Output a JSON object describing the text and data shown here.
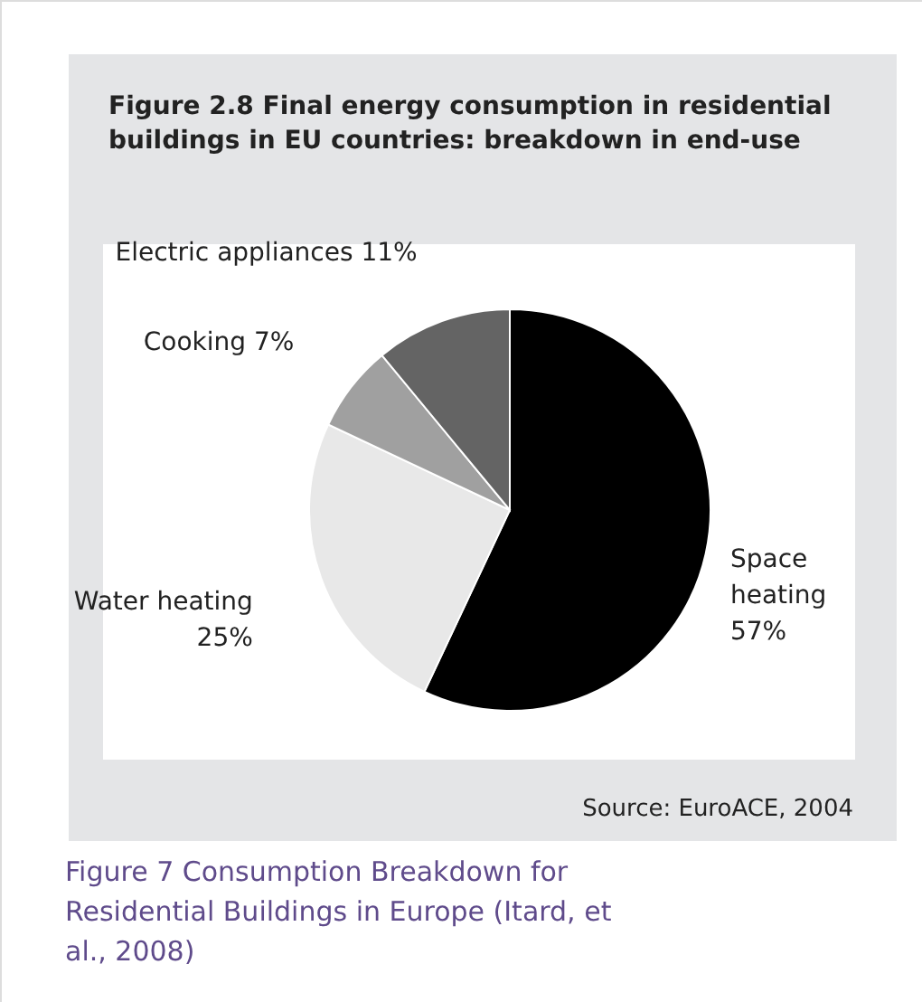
{
  "chart_data": {
    "type": "pie",
    "title": "Figure 2.8  Final energy consumption in residential buildings in EU countries: breakdown in end-use",
    "categories": [
      "Space heating",
      "Water heating",
      "Cooking",
      "Electric appliances"
    ],
    "values": [
      57,
      25,
      7,
      11
    ],
    "colors": [
      "#000000",
      "#e8e8e8",
      "#a0a0a0",
      "#646464"
    ],
    "value_labels": [
      "57%",
      "25%",
      "7%",
      "11%"
    ],
    "annotations": [
      "Source: EuroACE, 2004",
      "Figure 7 Consumption Breakdown for Residential Buildings in Europe (Itard, et al., 2008)"
    ]
  }
}
